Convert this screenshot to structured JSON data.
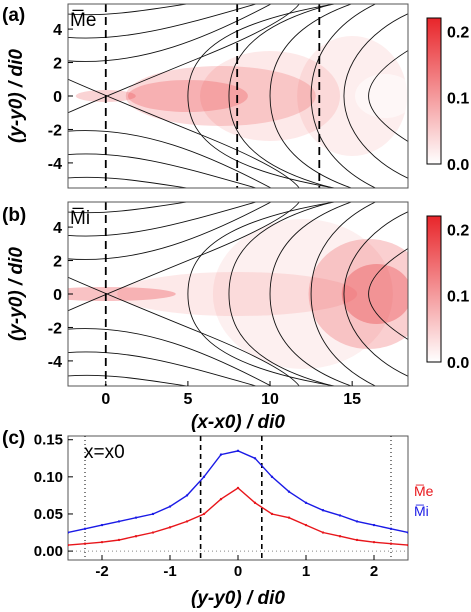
{
  "chart_data": [
    {
      "panel": "(a)",
      "type": "heatmap",
      "inset_label": "M̅e",
      "ylabel": "(y-y0) / di0",
      "x_range": [
        -2.3,
        18.4
      ],
      "y_range": [
        -5.5,
        5.5
      ],
      "y_ticks": [
        "4",
        "2",
        "0",
        "-2",
        "-4"
      ],
      "colorbar_range": [
        0.0,
        0.22
      ],
      "colorbar_ticks": [
        "0.2",
        "0.1",
        "0.0"
      ],
      "dashed_x": [
        0,
        8,
        13
      ],
      "peak_color": "#e8252a"
    },
    {
      "panel": "(b)",
      "type": "heatmap",
      "inset_label": "M̅i",
      "xlabel": "(x-x0) / di0",
      "ylabel": "(y-y0) / di0",
      "x_range": [
        -2.3,
        18.4
      ],
      "y_range": [
        -5.5,
        5.5
      ],
      "x_ticks": [
        "0",
        "5",
        "10",
        "15"
      ],
      "y_ticks": [
        "4",
        "2",
        "0",
        "-2",
        "-4"
      ],
      "colorbar_range": [
        0.0,
        0.22
      ],
      "colorbar_ticks": [
        "0.2",
        "0.1",
        "0.0"
      ],
      "dashed_x": [
        0
      ],
      "peak_color": "#e8252a"
    },
    {
      "panel": "(c)",
      "type": "line",
      "annotation": "x=x0",
      "xlabel": "(y-y0) / di0",
      "x_range": [
        -2.5,
        2.5
      ],
      "y_range": [
        -0.012,
        0.155
      ],
      "x_ticks": [
        "-2",
        "-1",
        "0",
        "1",
        "2"
      ],
      "y_ticks": [
        "0.15",
        "0.10",
        "0.05",
        "0.00"
      ],
      "dashed_x": [
        -0.55,
        0.35
      ],
      "dotted_x": [
        -2.25,
        2.25
      ],
      "series": [
        {
          "name": "M̅e",
          "color": "#e8161b",
          "x": [
            -2.5,
            -2.25,
            -2.0,
            -1.75,
            -1.5,
            -1.25,
            -1.0,
            -0.75,
            -0.5,
            -0.25,
            0.0,
            0.25,
            0.5,
            0.75,
            1.0,
            1.25,
            1.5,
            1.75,
            2.0,
            2.25,
            2.5
          ],
          "y": [
            0.008,
            0.01,
            0.012,
            0.015,
            0.02,
            0.025,
            0.032,
            0.04,
            0.05,
            0.07,
            0.085,
            0.065,
            0.05,
            0.045,
            0.035,
            0.025,
            0.02,
            0.015,
            0.012,
            0.01,
            0.008
          ]
        },
        {
          "name": "M̅i",
          "color": "#1a1ae6",
          "x": [
            -2.5,
            -2.25,
            -2.0,
            -1.75,
            -1.5,
            -1.25,
            -1.0,
            -0.75,
            -0.5,
            -0.25,
            0.0,
            0.25,
            0.5,
            0.75,
            1.0,
            1.25,
            1.5,
            1.75,
            2.0,
            2.25,
            2.5
          ],
          "y": [
            0.025,
            0.03,
            0.035,
            0.04,
            0.045,
            0.05,
            0.06,
            0.075,
            0.1,
            0.13,
            0.135,
            0.125,
            0.1,
            0.08,
            0.065,
            0.055,
            0.048,
            0.04,
            0.035,
            0.03,
            0.025
          ]
        }
      ]
    }
  ],
  "labels": {
    "panel_a": "(a)",
    "panel_b": "(b)",
    "panel_c": "(c)"
  }
}
